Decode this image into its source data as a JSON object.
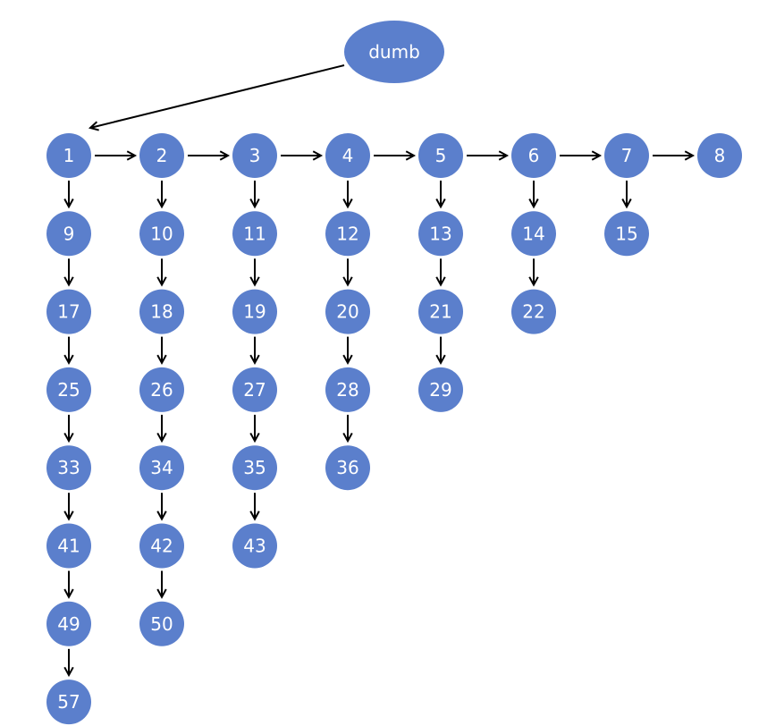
{
  "diagram": {
    "node_color": "#5b7fcc",
    "edge_color": "#000000",
    "label_color": "#ffffff",
    "root": {
      "label": "dumb"
    },
    "nodes": [
      "1",
      "2",
      "3",
      "4",
      "5",
      "6",
      "7",
      "8",
      "9",
      "10",
      "11",
      "12",
      "13",
      "14",
      "15",
      "17",
      "18",
      "19",
      "20",
      "21",
      "22",
      "25",
      "26",
      "27",
      "28",
      "29",
      "33",
      "34",
      "35",
      "36",
      "41",
      "42",
      "43",
      "49",
      "50",
      "57"
    ],
    "edges": [
      [
        "dumb",
        "1"
      ],
      [
        "1",
        "2"
      ],
      [
        "2",
        "3"
      ],
      [
        "3",
        "4"
      ],
      [
        "4",
        "5"
      ],
      [
        "5",
        "6"
      ],
      [
        "6",
        "7"
      ],
      [
        "7",
        "8"
      ],
      [
        "1",
        "9"
      ],
      [
        "9",
        "17"
      ],
      [
        "17",
        "25"
      ],
      [
        "25",
        "33"
      ],
      [
        "33",
        "41"
      ],
      [
        "41",
        "49"
      ],
      [
        "49",
        "57"
      ],
      [
        "2",
        "10"
      ],
      [
        "10",
        "18"
      ],
      [
        "18",
        "26"
      ],
      [
        "26",
        "34"
      ],
      [
        "34",
        "42"
      ],
      [
        "42",
        "50"
      ],
      [
        "3",
        "11"
      ],
      [
        "11",
        "19"
      ],
      [
        "19",
        "27"
      ],
      [
        "27",
        "35"
      ],
      [
        "35",
        "43"
      ],
      [
        "4",
        "12"
      ],
      [
        "12",
        "20"
      ],
      [
        "20",
        "28"
      ],
      [
        "28",
        "36"
      ],
      [
        "5",
        "13"
      ],
      [
        "13",
        "21"
      ],
      [
        "21",
        "29"
      ],
      [
        "6",
        "14"
      ],
      [
        "14",
        "22"
      ],
      [
        "7",
        "15"
      ]
    ]
  }
}
